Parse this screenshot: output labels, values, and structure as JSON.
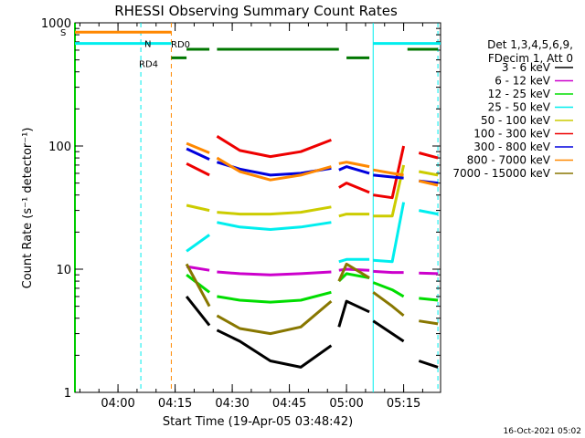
{
  "chart_data": {
    "type": "line",
    "title": "RHESSI Observing Summary Count Rates",
    "xlabel": "Start Time (19-Apr-05 03:48:42)",
    "ylabel": "Count Rate (s⁻¹ detector⁻¹)",
    "y_scale": "log",
    "ylim": [
      1,
      1000
    ],
    "y_ticks": [
      "1",
      "10",
      "100",
      "1000"
    ],
    "x_range": [
      "03:48:42",
      "05:24:42"
    ],
    "x_ticks": [
      "04:00",
      "04:15",
      "04:30",
      "04:45",
      "05:00",
      "05:15"
    ],
    "timestamp": "16-Oct-2021 05:02",
    "legend": {
      "header": [
        "Det 1,3,4,5,6,9,",
        "FDecim 1, Att 0"
      ],
      "position": "right"
    },
    "x": [
      "04:18",
      "04:24",
      "04:26",
      "04:32",
      "04:40",
      "04:48",
      "04:56",
      "04:58",
      "05:00",
      "05:06",
      "05:07",
      "05:12",
      "05:15",
      "05:19",
      "05:24"
    ],
    "gaps": [
      {
        "start": "04:24",
        "end": "04:26"
      },
      {
        "start": "04:56",
        "end": "04:58"
      },
      {
        "start": "05:06",
        "end": "05:07"
      },
      {
        "start": "05:15",
        "end": "05:16"
      }
    ],
    "series": [
      {
        "name": "3 - 6 keV",
        "color": "#000000",
        "values": [
          6.0,
          3.5,
          3.2,
          2.6,
          1.8,
          1.6,
          2.4,
          3.4,
          5.5,
          4.5,
          3.8,
          3.0,
          2.6,
          1.8,
          1.6
        ]
      },
      {
        "name": "6 - 12 keV",
        "color": "#cc00cc",
        "values": [
          10.5,
          9.8,
          9.5,
          9.2,
          9.0,
          9.2,
          9.5,
          9.8,
          10.0,
          9.8,
          9.6,
          9.4,
          9.4,
          9.3,
          9.2
        ]
      },
      {
        "name": "12 - 25 keV",
        "color": "#00dd00",
        "values": [
          9.0,
          6.5,
          6.0,
          5.6,
          5.4,
          5.6,
          6.5,
          8.0,
          9.2,
          8.5,
          7.8,
          6.8,
          6.0,
          5.8,
          5.6
        ]
      },
      {
        "name": "25 - 50 keV",
        "color": "#00eeee",
        "values": [
          14.0,
          19.0,
          24.0,
          22.0,
          21.0,
          22.0,
          24.0,
          11.5,
          12.0,
          12.0,
          11.8,
          11.5,
          35.0,
          30.0,
          28.0
        ]
      },
      {
        "name": "50 - 100 keV",
        "color": "#cccc00",
        "values": [
          33.0,
          30.0,
          29.0,
          28.0,
          28.0,
          29.0,
          32.0,
          27.0,
          28.0,
          28.0,
          27.0,
          27.0,
          70.0,
          62.0,
          58.0
        ]
      },
      {
        "name": "100 - 300 keV",
        "color": "#ee0000",
        "values": [
          72.0,
          58.0,
          120.0,
          92.0,
          82.0,
          90.0,
          112.0,
          46.0,
          50.0,
          42.0,
          40.0,
          38.0,
          100.0,
          88.0,
          80.0
        ]
      },
      {
        "name": "300 - 800 keV",
        "color": "#0000dd",
        "values": [
          95.0,
          78.0,
          74.0,
          65.0,
          58.0,
          60.0,
          66.0,
          64.0,
          68.0,
          60.0,
          58.0,
          56.0,
          55.0,
          52.0,
          50.0
        ]
      },
      {
        "name": "800 - 7000 keV",
        "color": "#ff8800",
        "values": [
          105.0,
          88.0,
          80.0,
          62.0,
          53.0,
          58.0,
          68.0,
          72.0,
          74.0,
          68.0,
          64.0,
          60.0,
          58.0,
          52.0,
          48.0
        ]
      },
      {
        "name": "7000 - 15000 keV",
        "color": "#887700",
        "values": [
          11.0,
          5.0,
          4.2,
          3.3,
          3.0,
          3.4,
          5.5,
          8.0,
          11.0,
          8.5,
          6.5,
          5.0,
          4.2,
          3.8,
          3.6
        ]
      }
    ],
    "state_bars": [
      {
        "label": "S",
        "color": "#ff8800",
        "start": "03:48:42",
        "end": "04:14",
        "level": 840
      },
      {
        "label": "N",
        "color": "#00eeee",
        "start": "03:48:42",
        "end": "04:14",
        "level": 680,
        "color_end": "#00eeee"
      },
      {
        "label": "N",
        "color": "#00eeee",
        "start": "05:07",
        "end": "05:24:42",
        "level": 680
      },
      {
        "label": "RD0",
        "color": "#007700",
        "start": "04:26",
        "end": "04:58",
        "level": 610
      },
      {
        "label": "RD4",
        "color": "#007700",
        "start": "04:14",
        "end": "04:18",
        "level": 520
      }
    ],
    "markers": [
      {
        "time": "04:06",
        "color": "#00eeee",
        "dashed": true
      },
      {
        "time": "04:14",
        "color": "#ff8800",
        "dashed": true
      },
      {
        "time": "05:07",
        "color": "#00eeee",
        "dashed": false
      },
      {
        "time": "05:24",
        "color": "#00eeee",
        "dashed": true
      }
    ]
  }
}
